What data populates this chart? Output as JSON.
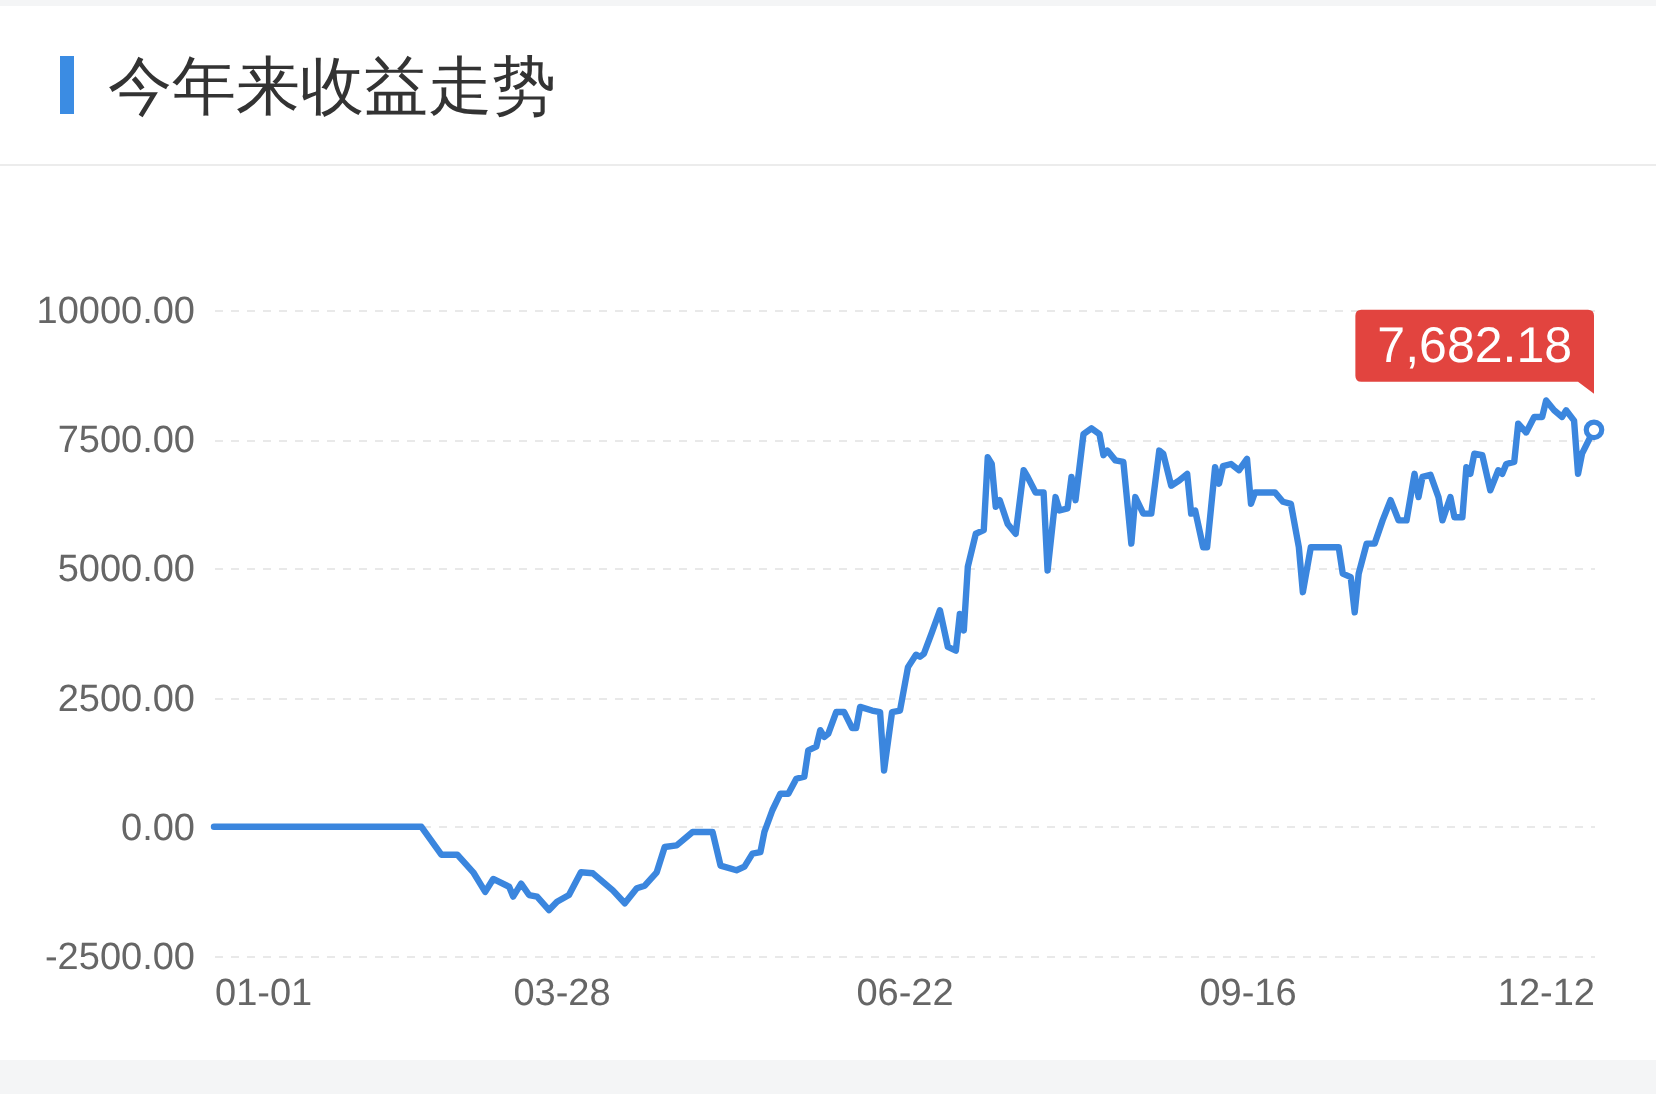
{
  "chart_data": {
    "type": "line",
    "title": "今年来收益走势",
    "x": [
      "--01-01",
      "--02-22",
      "--02-27",
      "--03-02",
      "--03-06",
      "--03-09",
      "--03-11",
      "--03-15",
      "--03-16",
      "--03-18",
      "--03-20",
      "--03-22",
      "--03-25",
      "--03-27",
      "--03-30",
      "--04-02",
      "--04-05",
      "--04-10",
      "--04-13",
      "--04-16",
      "--04-18",
      "--04-21",
      "--04-23",
      "--04-26",
      "--04-30",
      "--05-05",
      "--05-07",
      "--05-11",
      "--05-13",
      "--05-15",
      "--05-17",
      "--05-18",
      "--05-20",
      "--05-22",
      "--05-24",
      "--05-26",
      "--05-28",
      "--05-29",
      "--05-31",
      "--06-01",
      "--06-02",
      "--06-03",
      "--06-05",
      "--06-07",
      "--06-09",
      "--06-10",
      "--06-11",
      "--06-14",
      "--06-16",
      "--06-17",
      "--06-19",
      "--06-21",
      "--06-23",
      "--06-25",
      "--06-26",
      "--06-27",
      "--06-29",
      "--07-01",
      "--07-03",
      "--07-05",
      "--07-06",
      "--07-07",
      "--07-08",
      "--07-10",
      "--07-12",
      "--07-13",
      "--07-14",
      "--07-15",
      "--07-16",
      "--07-18",
      "--07-20",
      "--07-22",
      "--07-23",
      "--07-25",
      "--07-27",
      "--07-28",
      "--07-30",
      "--07-31",
      "--08-02",
      "--08-03",
      "--08-04",
      "--08-06",
      "--08-08",
      "--08-10",
      "--08-11",
      "--08-12",
      "--08-14",
      "--08-16",
      "--08-18",
      "--08-19",
      "--08-21",
      "--08-23",
      "--08-25",
      "--08-26",
      "--08-28",
      "--08-30",
      "--09-01",
      "--09-02",
      "--09-03",
      "--09-05",
      "--09-06",
      "--09-08",
      "--09-09",
      "--09-10",
      "--09-12",
      "--09-14",
      "--09-16",
      "--09-17",
      "--09-18",
      "--09-23",
      "--09-25",
      "--09-27",
      "--09-29",
      "--09-30",
      "--10-02",
      "--10-09",
      "--10-10",
      "--10-12",
      "--10-13",
      "--10-14",
      "--10-16",
      "--10-18",
      "--10-20",
      "--10-22",
      "--10-24",
      "--10-26",
      "--10-28",
      "--10-29",
      "--10-30",
      "--11-01",
      "--11-03",
      "--11-04",
      "--11-06",
      "--11-07",
      "--11-09",
      "--11-10",
      "--11-11",
      "--11-12",
      "--11-14",
      "--11-16",
      "--11-18",
      "--11-19",
      "--11-20",
      "--11-22",
      "--11-23",
      "--11-25",
      "--11-27",
      "--11-29",
      "--11-30",
      "--12-02",
      "--12-04",
      "--12-05",
      "--12-07",
      "--12-08",
      "--12-09",
      "--12-12"
    ],
    "values": [
      0,
      0,
      -540,
      -540,
      -880,
      -1260,
      -1010,
      -1160,
      -1350,
      -1100,
      -1320,
      -1350,
      -1610,
      -1450,
      -1320,
      -880,
      -900,
      -1230,
      -1480,
      -1190,
      -1140,
      -880,
      -390,
      -360,
      -100,
      -100,
      -750,
      -840,
      -770,
      -520,
      -490,
      -100,
      320,
      640,
      640,
      930,
      970,
      1480,
      1550,
      1870,
      1740,
      1800,
      2220,
      2220,
      1910,
      1910,
      2320,
      2250,
      2220,
      1090,
      2220,
      2250,
      3090,
      3330,
      3290,
      3350,
      3760,
      4190,
      3480,
      3410,
      4120,
      3800,
      5030,
      5670,
      5740,
      7150,
      7020,
      6190,
      6320,
      5860,
      5670,
      6900,
      6770,
      6470,
      6470,
      4960,
      6380,
      6120,
      6160,
      6770,
      6320,
      7600,
      7710,
      7600,
      7190,
      7280,
      7090,
      7060,
      5480,
      6380,
      6060,
      6060,
      7280,
      7220,
      6600,
      6700,
      6830,
      6060,
      6120,
      5410,
      5410,
      6960,
      6640,
      6980,
      7020,
      6900,
      7120,
      6250,
      6470,
      6470,
      6290,
      6250,
      5410,
      4540,
      5410,
      5410,
      4900,
      4830,
      4150,
      4900,
      5480,
      5480,
      5930,
      6320,
      5930,
      5930,
      6830,
      6380,
      6770,
      6810,
      6380,
      5930,
      6380,
      5990,
      5990,
      6960,
      6830,
      7220,
      7190,
      6510,
      6900,
      6830,
      7020,
      7060,
      7800,
      7630,
      7930,
      7930,
      8250,
      8060,
      7930,
      8060,
      7860,
      6830,
      7220,
      7682.18
    ],
    "color": "#3b86de",
    "xlim": [
      "--01-01",
      "--12-12"
    ],
    "xticks": [
      {
        "value": "--01-01",
        "label": "01-01"
      },
      {
        "value": "--03-28",
        "label": "03-28"
      },
      {
        "value": "--06-22",
        "label": "06-22"
      },
      {
        "value": "--09-16",
        "label": "09-16"
      },
      {
        "value": "--12-12",
        "label": "12-12"
      }
    ],
    "ylim": [
      -2500,
      10000
    ],
    "yticks": [
      {
        "value": -2500,
        "label": "-2500.00"
      },
      {
        "value": 0,
        "label": "0.00"
      },
      {
        "value": 2500,
        "label": "2500.00"
      },
      {
        "value": 5000,
        "label": "5000.00"
      },
      {
        "value": 7500,
        "label": "7500.00"
      },
      {
        "value": 10000,
        "label": "10000.00"
      }
    ],
    "grid": "y",
    "annotations": [
      {
        "text": "7,682.18",
        "x": "--12-12",
        "y": 7682.18
      }
    ]
  }
}
